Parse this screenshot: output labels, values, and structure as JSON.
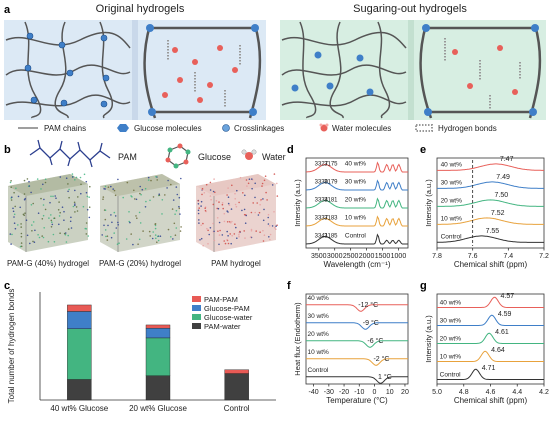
{
  "panel_a": {
    "letter": "a",
    "title_left": "Original hydrogels",
    "title_right": "Sugaring-out hydrogels",
    "legend": {
      "pam_chains": "PAM chains",
      "glucose": "Glucose molecules",
      "crosslink": "Crosslinkages",
      "water": "Water molecules",
      "hbond": "Hydrogen bonds"
    }
  },
  "panel_b": {
    "letter": "b",
    "mol_pam": "PAM",
    "mol_glucose": "Glucose",
    "mol_water": "Water",
    "box1": "PAM-G (40%) hydrogel",
    "box2": "PAM-G (20%) hydrogel",
    "box3": "PAM hydrogel"
  },
  "panel_c": {
    "letter": "c",
    "chart_data": {
      "type": "bar",
      "stacked": true,
      "ylabel": "Total number of hydrogen bonds",
      "categories": [
        "40 wt% Glucose",
        "20 wt% Glucose",
        "Control"
      ],
      "legend_position": "top-right",
      "series": [
        {
          "name": "PAM-water",
          "color": "#404040",
          "values": [
            3800,
            4500,
            4900
          ]
        },
        {
          "name": "Glucose-water",
          "color": "#43b581",
          "values": [
            9400,
            7000,
            0
          ]
        },
        {
          "name": "Glucose-PAM",
          "color": "#3f7fc8",
          "values": [
            3200,
            1800,
            0
          ]
        },
        {
          "name": "PAM-PAM",
          "color": "#e85a55",
          "values": [
            1200,
            600,
            700
          ]
        }
      ],
      "ylim": [
        0,
        20000
      ]
    }
  },
  "panel_d": {
    "letter": "d",
    "chart_data": {
      "type": "line",
      "xlabel": "Wavelength (cm⁻¹)",
      "ylabel": "Intensity (a.u.)",
      "xticks": [
        "3500",
        "3000",
        "2500",
        "2000",
        "1500",
        "1000"
      ],
      "xlim": [
        3900,
        700
      ],
      "series": [
        {
          "name": "40 wt%",
          "color": "#e8605a",
          "peaks": [
            "3327",
            "3175"
          ]
        },
        {
          "name": "30 wt%",
          "color": "#3f7fc8",
          "peaks": [
            "3330",
            "3179"
          ]
        },
        {
          "name": "20 wt%",
          "color": "#43b581",
          "peaks": [
            "3334",
            "3181"
          ]
        },
        {
          "name": "10 wt%",
          "color": "#e8a23c",
          "peaks": [
            "3337",
            "3183"
          ]
        },
        {
          "name": "Control",
          "color": "#333333",
          "peaks": [
            "3341",
            "3185"
          ]
        }
      ]
    }
  },
  "panel_e": {
    "letter": "e",
    "chart_data": {
      "type": "line",
      "xlabel": "Chemical shift (ppm)",
      "ylabel": "Intensity (a.u.)",
      "xticks": [
        "7.8",
        "7.6",
        "7.4",
        "7.2"
      ],
      "xlim": [
        7.8,
        7.2
      ],
      "series": [
        {
          "name": "40 wt%",
          "color": "#e8605a",
          "peak": "7.47"
        },
        {
          "name": "30 wt%",
          "color": "#3f7fc8",
          "peak": "7.49"
        },
        {
          "name": "20 wt%",
          "color": "#43b581",
          "peak": "7.50"
        },
        {
          "name": "10 wt%",
          "color": "#e8a23c",
          "peak": "7.52"
        },
        {
          "name": "Control",
          "color": "#333333",
          "peak": "7.55"
        }
      ]
    }
  },
  "panel_f": {
    "letter": "f",
    "chart_data": {
      "type": "line",
      "xlabel": "Temperature (°C)",
      "ylabel": "Heat flux (Endotherm)",
      "xticks": [
        "-40",
        "-30",
        "-20",
        "-10",
        "0",
        "10",
        "20"
      ],
      "xlim": [
        -45,
        22
      ],
      "series": [
        {
          "name": "40 wt%",
          "color": "#e8605a",
          "onset": -12,
          "label": "-12 °C"
        },
        {
          "name": "30 wt%",
          "color": "#3f7fc8",
          "onset": -9,
          "label": "-9 °C"
        },
        {
          "name": "20 wt%",
          "color": "#43b581",
          "onset": -6,
          "label": "-6 °C"
        },
        {
          "name": "10 wt%",
          "color": "#e8a23c",
          "onset": -2,
          "label": "-2 °C"
        },
        {
          "name": "Control",
          "color": "#333333",
          "onset": 1,
          "label": "1 °C"
        }
      ]
    }
  },
  "panel_g": {
    "letter": "g",
    "chart_data": {
      "type": "line",
      "xlabel": "Chemical shift (ppm)",
      "ylabel": "Intensity (a.u.)",
      "xticks": [
        "5.0",
        "4.8",
        "4.6",
        "4.4",
        "4.2"
      ],
      "xlim": [
        5.0,
        4.2
      ],
      "series": [
        {
          "name": "40 wt%",
          "color": "#e8605a",
          "peak": "4.57"
        },
        {
          "name": "30 wt%",
          "color": "#3f7fc8",
          "peak": "4.59"
        },
        {
          "name": "20 wt%",
          "color": "#43b581",
          "peak": "4.61"
        },
        {
          "name": "10 wt%",
          "color": "#e8a23c",
          "peak": "4.64"
        },
        {
          "name": "Control",
          "color": "#333333",
          "peak": "4.71"
        }
      ]
    }
  }
}
